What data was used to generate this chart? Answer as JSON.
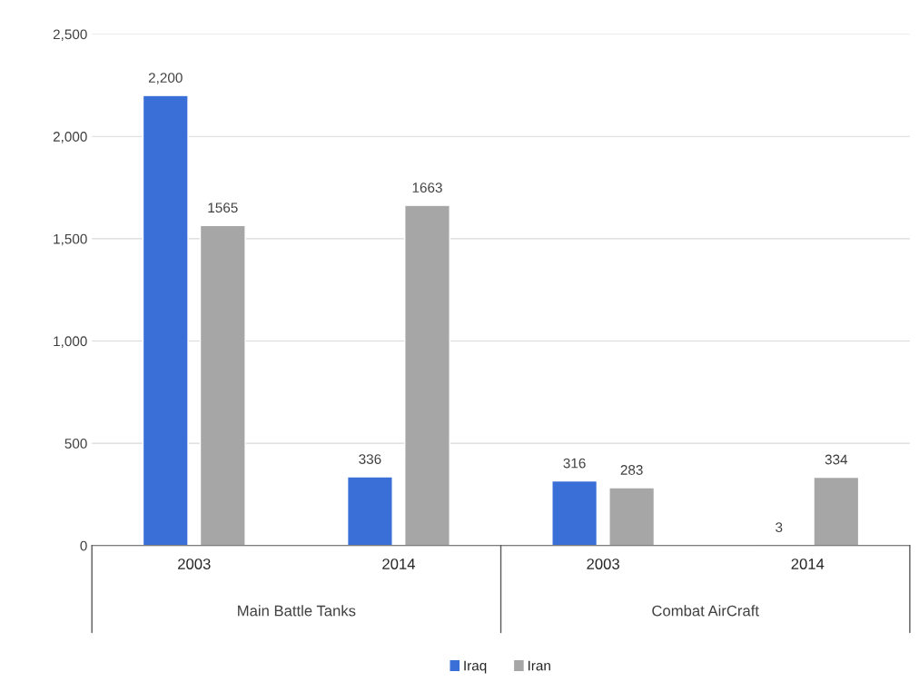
{
  "chart_data": {
    "type": "bar",
    "categories": [
      "2003",
      "2014",
      "2003",
      "2014"
    ],
    "series": [
      {
        "name": "Iraq",
        "color": "#3a6fd8",
        "values": [
          2200,
          336,
          316,
          3
        ],
        "value_labels": [
          "2,200",
          "336",
          "316",
          "3"
        ]
      },
      {
        "name": "Iran",
        "color": "#a6a6a6",
        "values": [
          1565,
          1663,
          283,
          334
        ],
        "value_labels": [
          "1565",
          "1663",
          "283",
          "334"
        ]
      }
    ],
    "annotations": [
      "Main Battle Tanks",
      "Combat AirCraft"
    ],
    "ylim": [
      0,
      2500
    ],
    "yticks": [
      0,
      500,
      {
        "value": 1000,
        "label": "1,000"
      },
      {
        "value": 1500,
        "label": "1,500"
      },
      {
        "value": 2000,
        "label": "2,000"
      },
      {
        "value": 2500,
        "label": "2,500"
      }
    ],
    "grid": "y",
    "legend": "bottom"
  }
}
